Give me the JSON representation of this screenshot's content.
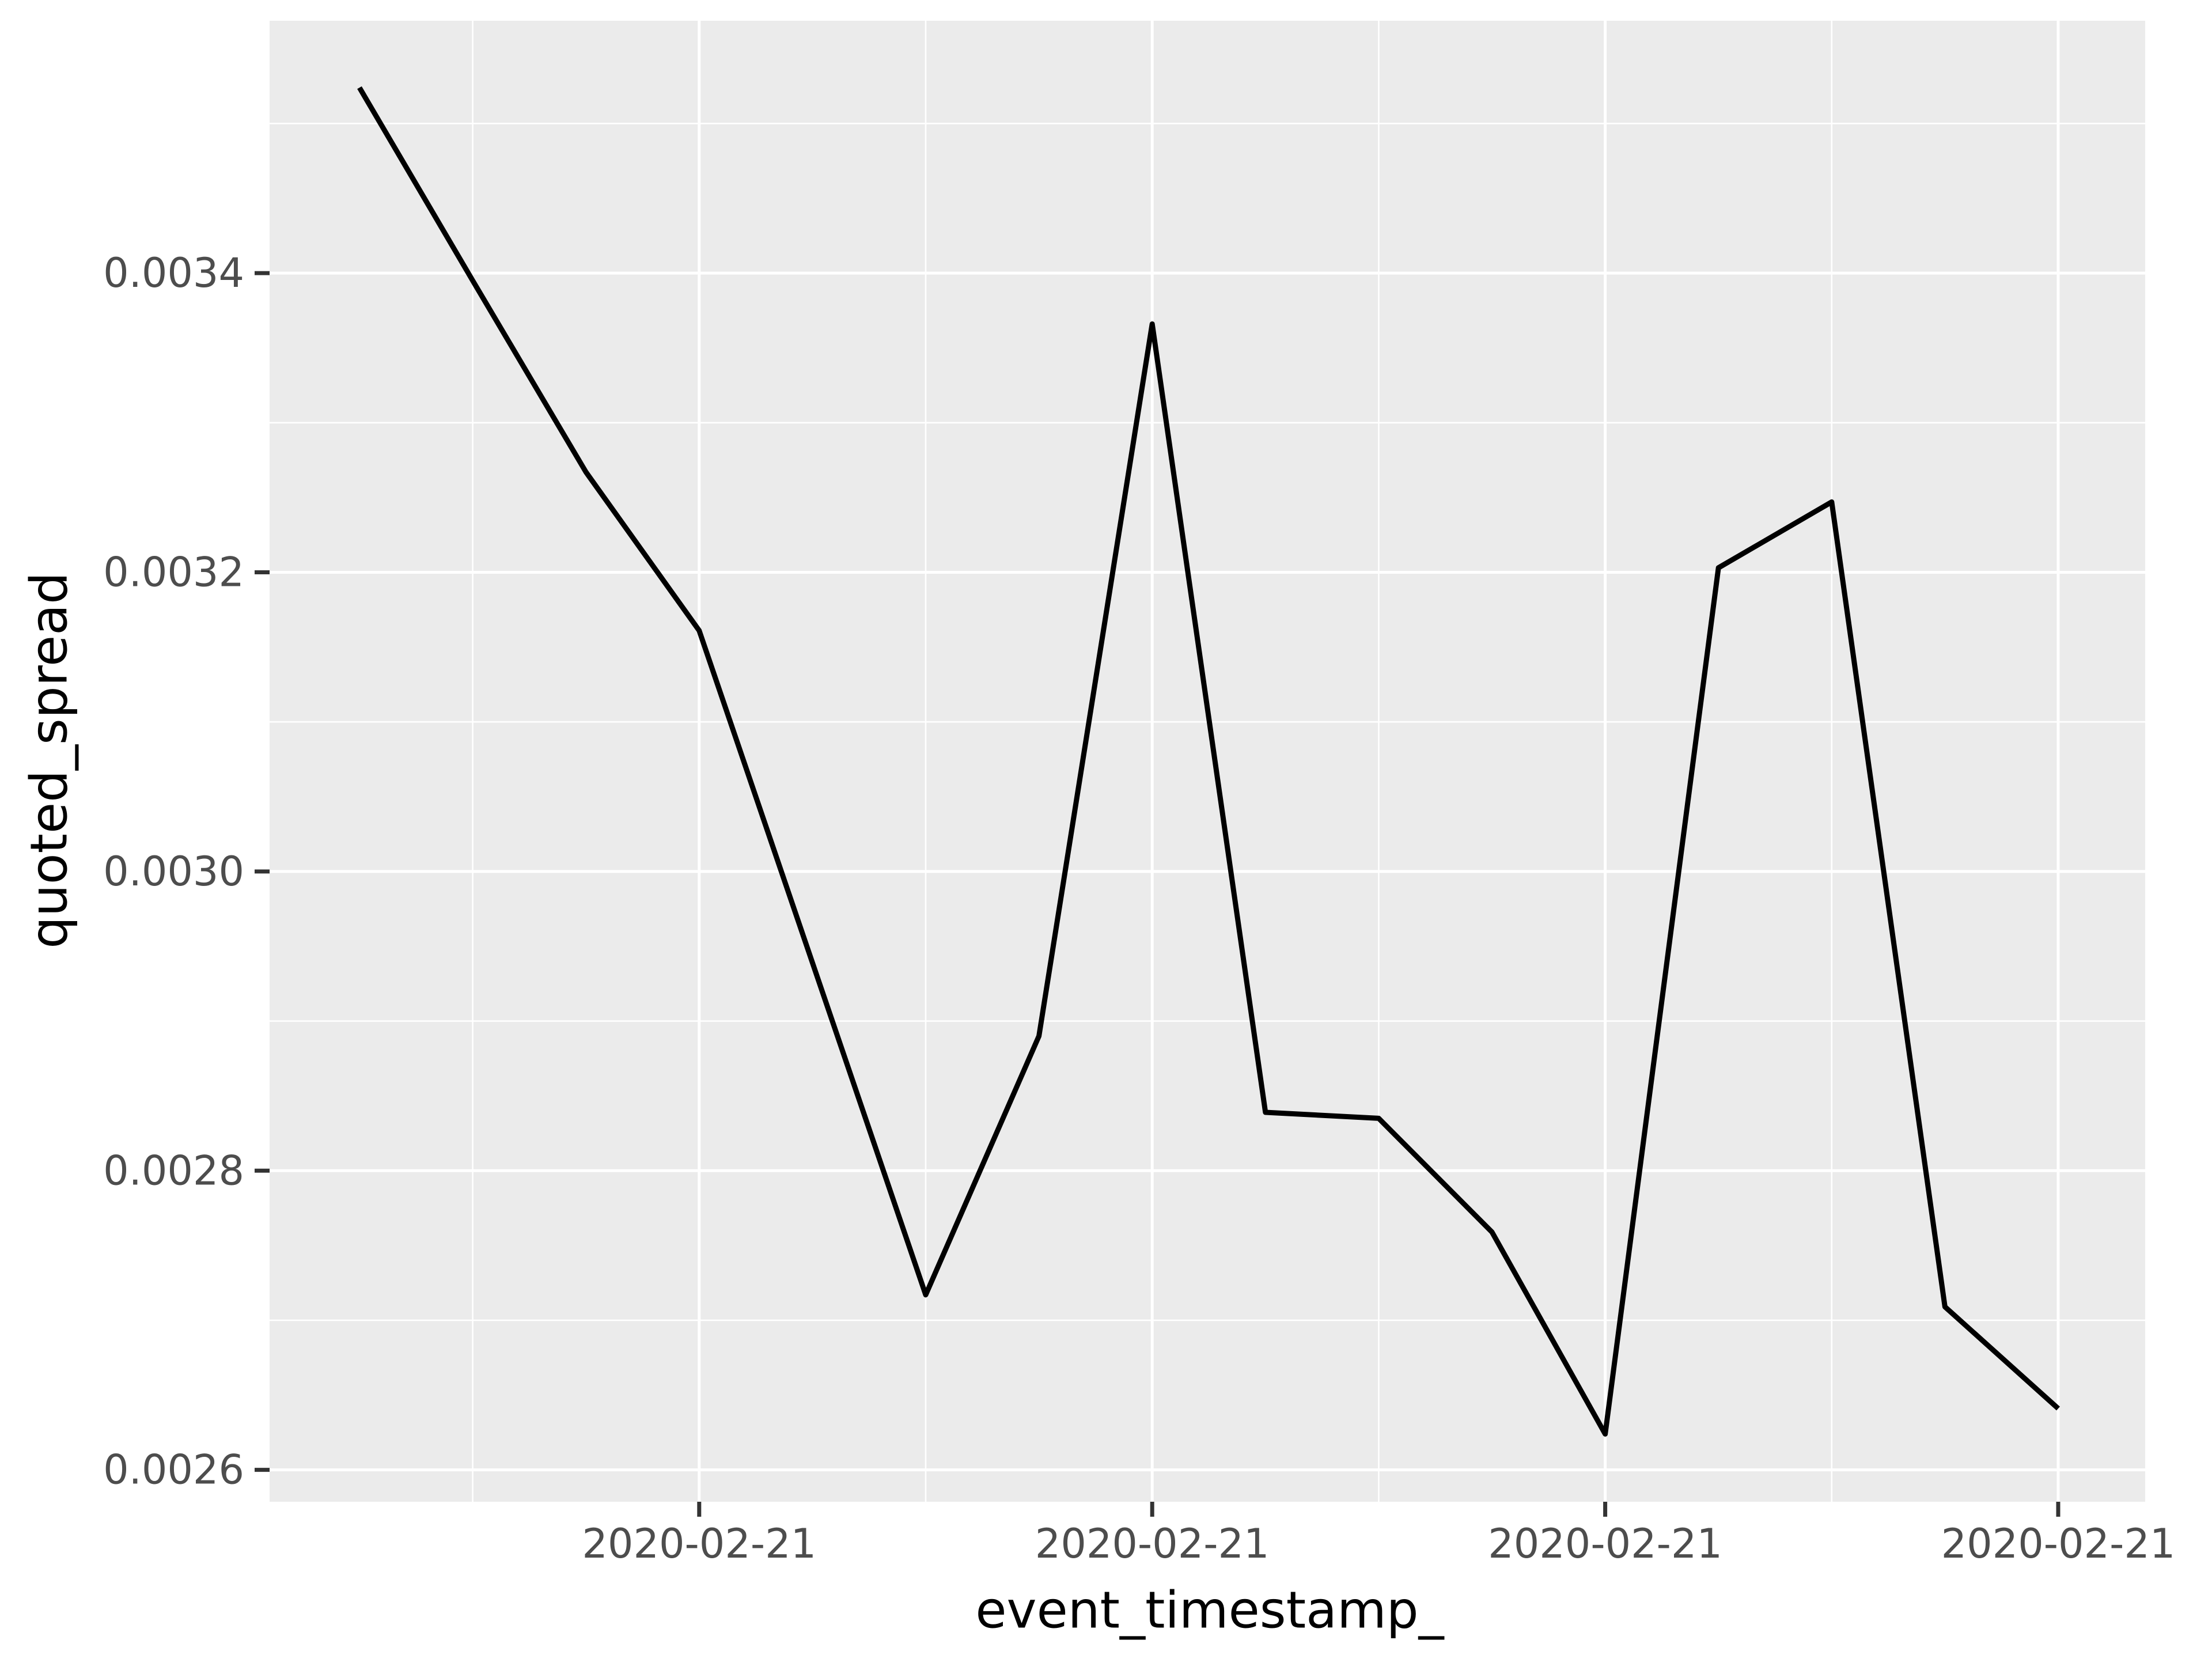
{
  "chart_data": {
    "type": "line",
    "title": "",
    "xlabel": "event_timestamp_",
    "ylabel": "quoted_spread",
    "series": [
      {
        "name": "quoted_spread",
        "values": [
          0.003524,
          0.003395,
          0.003267,
          0.003161,
          0.002939,
          0.002717,
          0.00289,
          0.003366,
          0.002839,
          0.002835,
          0.002759,
          0.002624,
          0.003203,
          0.003247,
          0.002709,
          0.002641
        ]
      }
    ],
    "n_points": 16,
    "x_tick_point_indices": [
      3,
      7,
      11,
      15
    ],
    "x_tick_labels": [
      "2020-02-21",
      "2020-02-21",
      "2020-02-21",
      "2020-02-21"
    ],
    "x_minor_point_indices": [
      1,
      5,
      9,
      13
    ],
    "y_ticks": [
      0.0026,
      0.0028,
      0.003,
      0.0032,
      0.0034
    ],
    "y_tick_labels": [
      "0.0026",
      "0.0028",
      "0.0030",
      "0.0032",
      "0.0034"
    ],
    "y_minor_ticks": [
      0.0027,
      0.0029,
      0.0031,
      0.0033,
      0.0035
    ],
    "ylim": [
      0.0025787,
      0.0035687
    ],
    "grid": "major+minor",
    "legend_position": "none",
    "style": {
      "panel_bg": "#EBEBEB",
      "outer_bg": "#FFFFFF",
      "grid_color": "#FFFFFF",
      "line_color": "#000000",
      "tick_mark_color": "#333333",
      "tick_label_color": "#4D4D4D",
      "axis_title_color": "#000000"
    }
  }
}
